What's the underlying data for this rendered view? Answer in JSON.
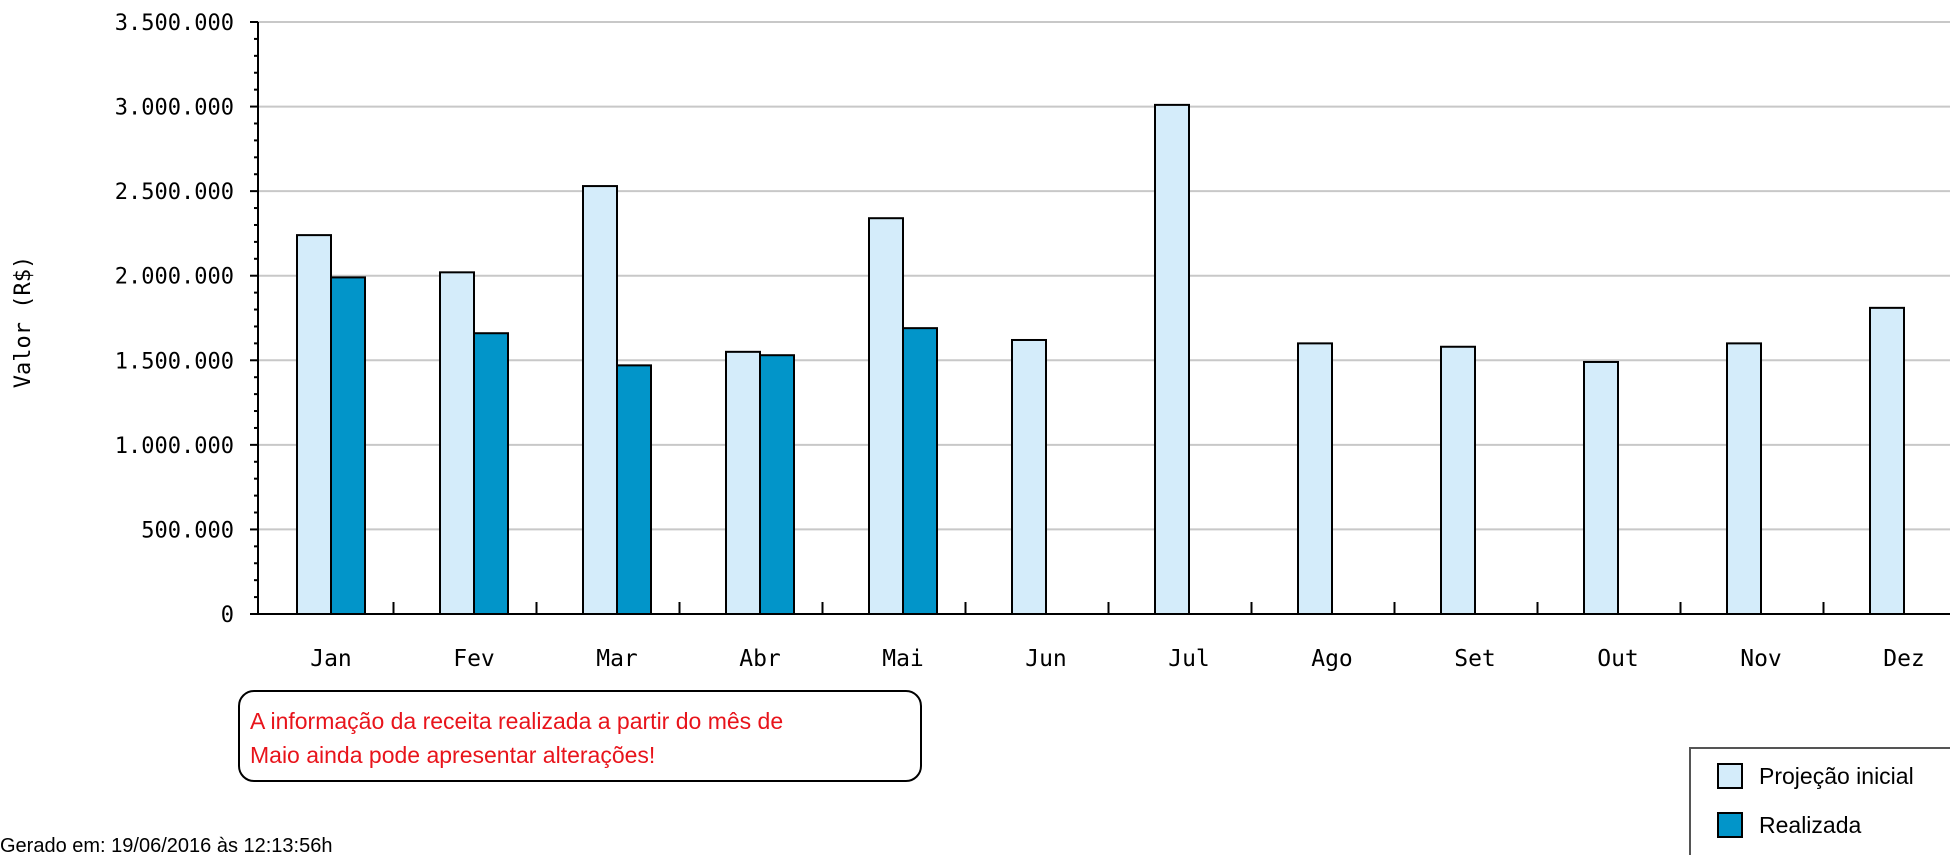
{
  "chart_data": {
    "type": "bar",
    "title": "",
    "xlabel": "",
    "ylabel": "Valor (R$)",
    "ylim": [
      0,
      3500000
    ],
    "y_ticks": [
      "0",
      "500.000",
      "1.000.000",
      "1.500.000",
      "2.000.000",
      "2.500.000",
      "3.000.000",
      "3.500.000"
    ],
    "y_tick_values": [
      0,
      500000,
      1000000,
      1500000,
      2000000,
      2500000,
      3000000,
      3500000
    ],
    "categories": [
      "Jan",
      "Fev",
      "Mar",
      "Abr",
      "Mai",
      "Jun",
      "Jul",
      "Ago",
      "Set",
      "Out",
      "Nov",
      "Dez"
    ],
    "series": [
      {
        "name": "Projeção inicial",
        "color": "#d4ecfa",
        "values": [
          2240000,
          2020000,
          2530000,
          1550000,
          2340000,
          1620000,
          3010000,
          1600000,
          1580000,
          1490000,
          1600000,
          1810000
        ]
      },
      {
        "name": "Realizada",
        "color": "#0295c9",
        "values": [
          1990000,
          1660000,
          1470000,
          1530000,
          1690000,
          null,
          null,
          null,
          null,
          null,
          null,
          null
        ]
      }
    ],
    "grid": true,
    "legend_position": "bottom-right"
  },
  "notice": {
    "line1": "A informação da receita realizada a partir do mês de",
    "line2": "Maio ainda pode apresentar alterações!"
  },
  "footer": {
    "generated": "Gerado em: 19/06/2016 às 12:13:56h"
  },
  "legend": {
    "items": [
      {
        "label": "Projeção inicial",
        "color": "#d4ecfa"
      },
      {
        "label": "Realizada",
        "color": "#0295c9"
      }
    ]
  }
}
